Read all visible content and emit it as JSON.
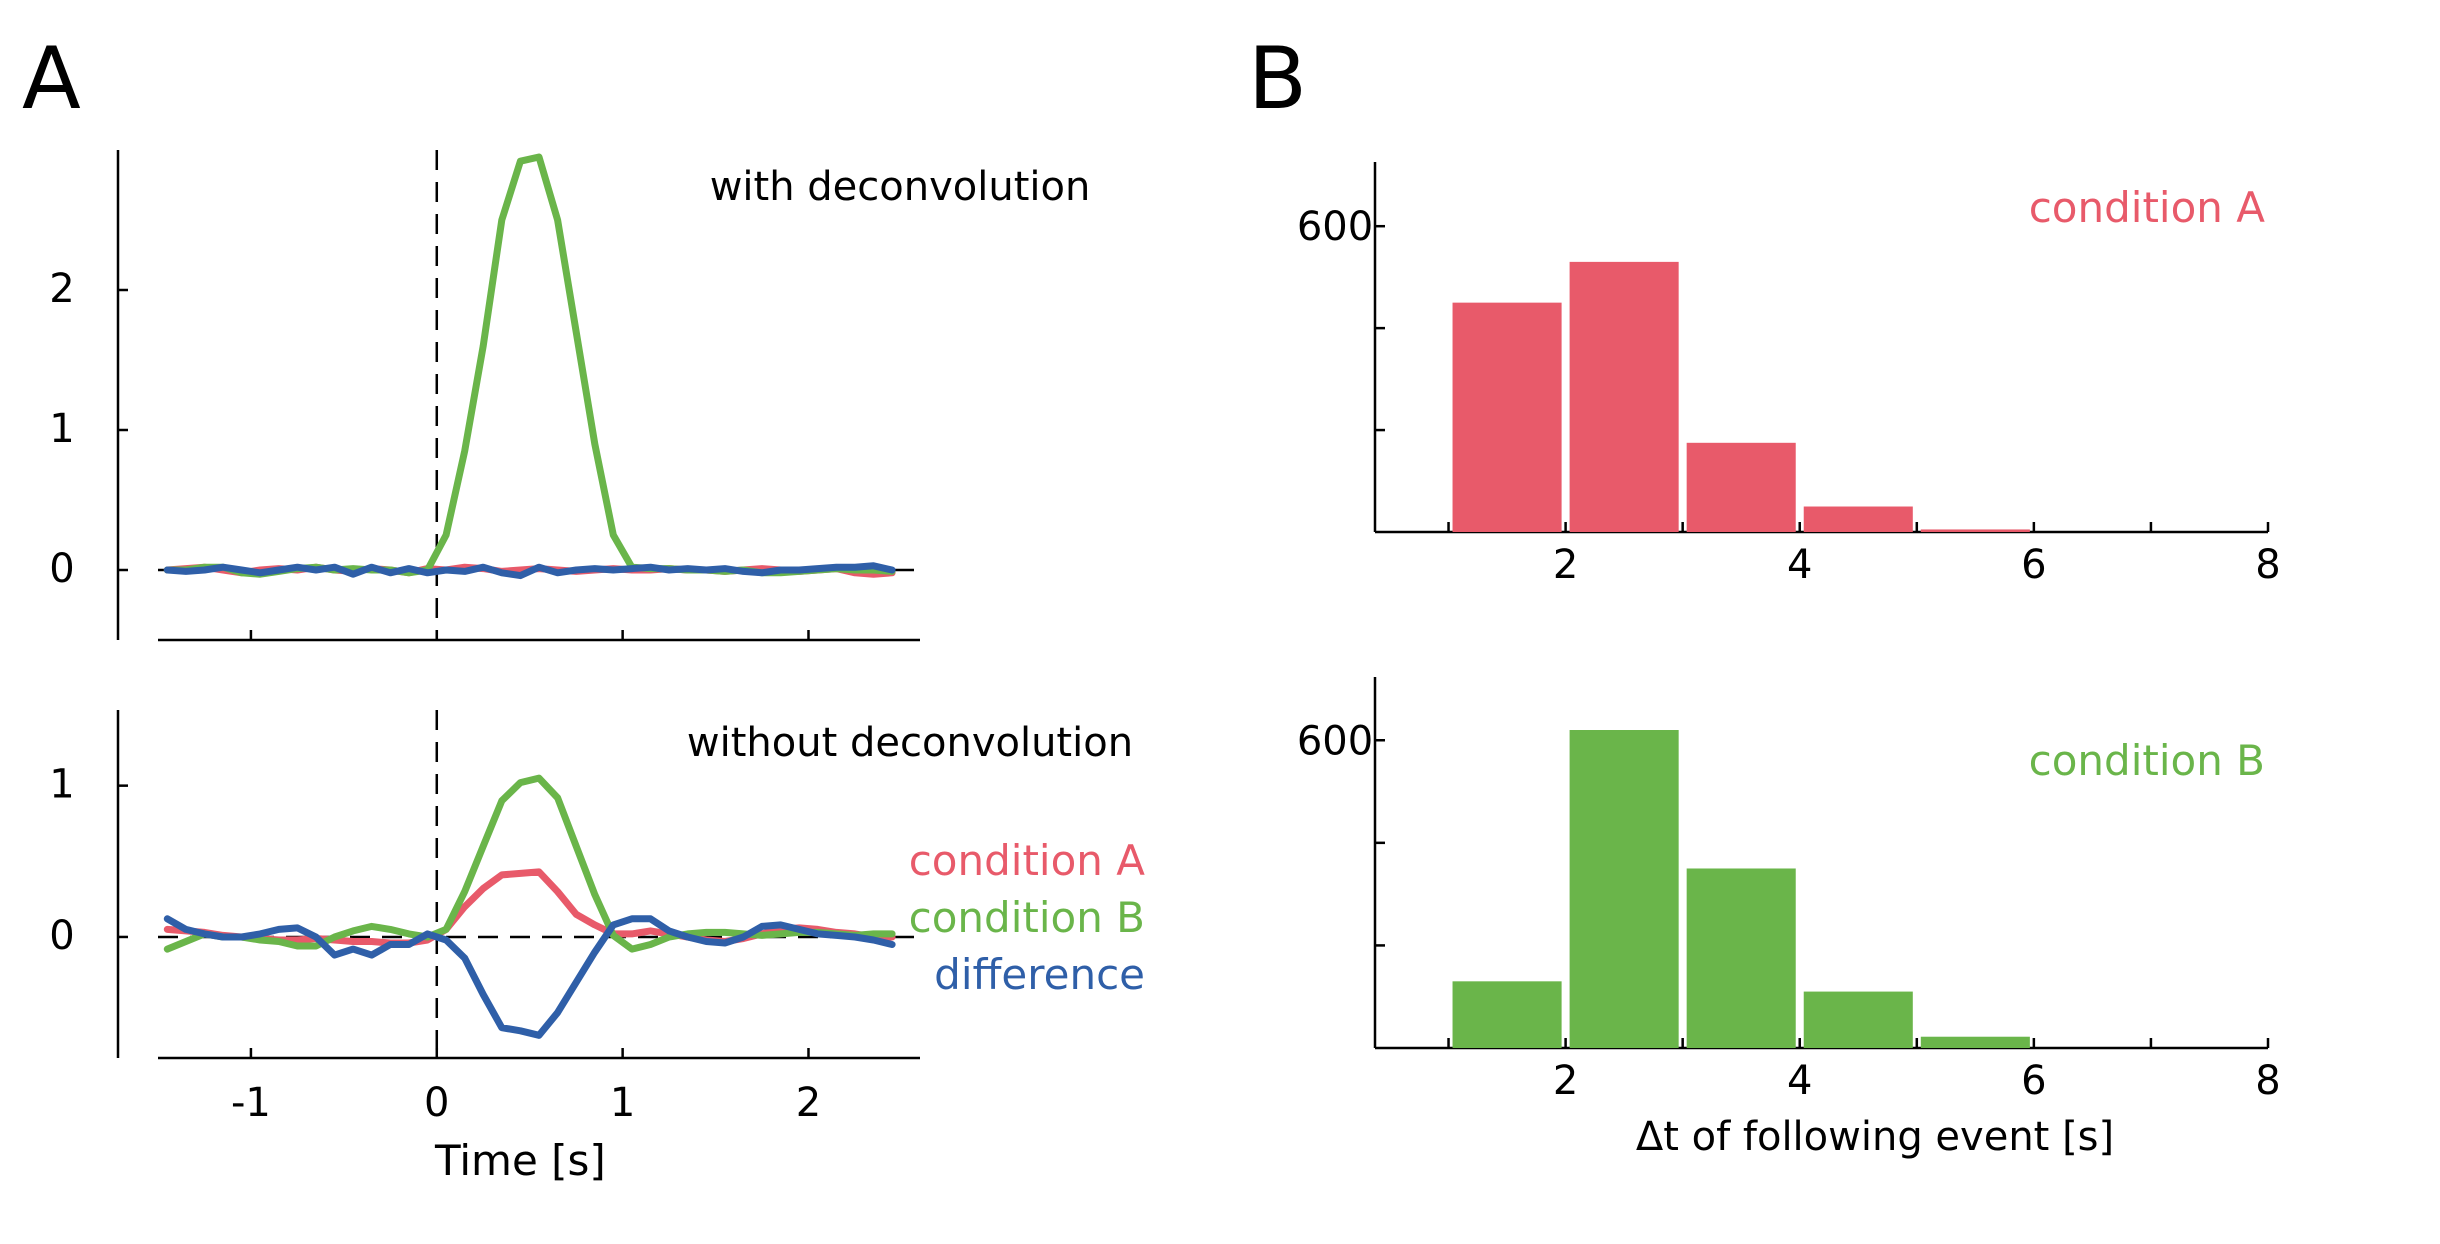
{
  "panels": {
    "a_label": "A",
    "b_label": "B"
  },
  "colors": {
    "condition_a": "#e85a6a",
    "condition_b": "#6ab54a",
    "difference": "#2f5fa8",
    "axis": "#000000"
  },
  "chart_data": [
    {
      "id": "A-top",
      "type": "line",
      "title": "with deconvolution",
      "xlabel": "",
      "ylabel": "",
      "xlim": [
        -1.5,
        2.6
      ],
      "ylim": [
        -0.5,
        3.0
      ],
      "yticks": [
        0,
        1,
        2
      ],
      "xticks": [
        -1,
        0,
        1,
        2
      ],
      "x_ticklabels_shown": false,
      "reference_lines": {
        "vertical_x": 0,
        "horizontal_y": 0,
        "style": "dashed"
      },
      "x": [
        -1.45,
        -1.35,
        -1.25,
        -1.15,
        -1.05,
        -0.95,
        -0.85,
        -0.75,
        -0.65,
        -0.55,
        -0.45,
        -0.35,
        -0.25,
        -0.15,
        -0.05,
        0.05,
        0.15,
        0.25,
        0.35,
        0.45,
        0.55,
        0.65,
        0.75,
        0.85,
        0.95,
        1.05,
        1.15,
        1.25,
        1.35,
        1.45,
        1.55,
        1.65,
        1.75,
        1.85,
        1.95,
        2.05,
        2.15,
        2.25,
        2.35,
        2.45
      ],
      "series": [
        {
          "name": "condition A",
          "color_key": "condition_a",
          "values": [
            0.0,
            0.01,
            0.02,
            0.0,
            -0.02,
            0.0,
            0.01,
            0.0,
            0.02,
            0.0,
            -0.01,
            0.01,
            0.0,
            -0.02,
            0.01,
            0.0,
            0.02,
            0.01,
            -0.01,
            0.0,
            0.01,
            0.0,
            -0.01,
            0.0,
            0.01,
            0.0,
            0.0,
            0.01,
            0.0,
            0.0,
            -0.01,
            0.0,
            0.01,
            0.0,
            -0.01,
            0.0,
            0.01,
            -0.02,
            -0.03,
            -0.02
          ]
        },
        {
          "name": "condition B",
          "color_key": "condition_b",
          "values": [
            0.0,
            0.0,
            0.02,
            0.02,
            -0.02,
            -0.03,
            -0.01,
            0.01,
            0.02,
            0.0,
            0.01,
            0.0,
            0.0,
            -0.02,
            0.0,
            0.25,
            0.85,
            1.6,
            2.5,
            2.92,
            2.95,
            2.5,
            1.7,
            0.9,
            0.25,
            0.02,
            0.01,
            0.01,
            0.0,
            0.0,
            -0.01,
            0.0,
            -0.02,
            -0.02,
            -0.01,
            0.0,
            0.01,
            0.0,
            0.0,
            -0.01
          ]
        },
        {
          "name": "difference",
          "color_key": "difference",
          "values": [
            0.0,
            -0.01,
            0.0,
            0.02,
            0.0,
            -0.02,
            0.0,
            0.02,
            0.0,
            0.02,
            -0.03,
            0.02,
            -0.02,
            0.01,
            -0.02,
            0.0,
            -0.01,
            0.02,
            -0.02,
            -0.04,
            0.02,
            -0.02,
            0.0,
            0.01,
            0.0,
            0.01,
            0.02,
            0.0,
            0.01,
            0.0,
            0.01,
            -0.01,
            -0.02,
            0.0,
            0.0,
            0.01,
            0.02,
            0.02,
            0.03,
            0.0
          ]
        }
      ]
    },
    {
      "id": "A-bottom",
      "type": "line",
      "title": "without deconvolution",
      "xlabel": "Time [s]",
      "ylabel": "",
      "xlim": [
        -1.5,
        2.6
      ],
      "ylim": [
        -0.8,
        1.5
      ],
      "yticks": [
        0,
        1
      ],
      "xticks": [
        -1,
        0,
        1,
        2
      ],
      "xticklabels": [
        "-1",
        "0",
        "1",
        "2"
      ],
      "reference_lines": {
        "vertical_x": 0,
        "horizontal_y": 0,
        "style": "dashed"
      },
      "legend": [
        "condition A",
        "condition B",
        "difference"
      ],
      "legend_position": "right",
      "x": [
        -1.45,
        -1.35,
        -1.25,
        -1.15,
        -1.05,
        -0.95,
        -0.85,
        -0.75,
        -0.65,
        -0.55,
        -0.45,
        -0.35,
        -0.25,
        -0.15,
        -0.05,
        0.05,
        0.15,
        0.25,
        0.35,
        0.45,
        0.55,
        0.65,
        0.75,
        0.85,
        0.95,
        1.05,
        1.15,
        1.25,
        1.35,
        1.45,
        1.55,
        1.65,
        1.75,
        1.85,
        1.95,
        2.05,
        2.15,
        2.25,
        2.35,
        2.45
      ],
      "series": [
        {
          "name": "condition A",
          "color_key": "condition_a",
          "values": [
            0.05,
            0.04,
            0.03,
            0.01,
            0.0,
            -0.01,
            -0.02,
            -0.02,
            -0.01,
            -0.02,
            -0.03,
            -0.03,
            -0.04,
            -0.04,
            -0.02,
            0.05,
            0.2,
            0.32,
            0.41,
            0.42,
            0.43,
            0.3,
            0.15,
            0.08,
            0.02,
            0.02,
            0.04,
            0.02,
            0.0,
            -0.02,
            -0.03,
            -0.01,
            0.02,
            0.05,
            0.06,
            0.05,
            0.03,
            0.02,
            0.0,
            0.0
          ]
        },
        {
          "name": "condition B",
          "color_key": "condition_b",
          "values": [
            -0.08,
            -0.03,
            0.02,
            0.0,
            0.0,
            -0.02,
            -0.03,
            -0.06,
            -0.06,
            0.0,
            0.04,
            0.07,
            0.05,
            0.02,
            0.0,
            0.05,
            0.3,
            0.6,
            0.9,
            1.02,
            1.05,
            0.92,
            0.6,
            0.28,
            0.01,
            -0.08,
            -0.05,
            0.0,
            0.02,
            0.03,
            0.03,
            0.02,
            0.01,
            0.02,
            0.03,
            0.03,
            0.02,
            0.01,
            0.02,
            0.02
          ]
        },
        {
          "name": "difference",
          "color_key": "difference",
          "values": [
            0.12,
            0.05,
            0.02,
            0.0,
            0.0,
            0.02,
            0.05,
            0.06,
            0.0,
            -0.12,
            -0.08,
            -0.12,
            -0.05,
            -0.05,
            0.02,
            -0.02,
            -0.14,
            -0.38,
            -0.6,
            -0.62,
            -0.65,
            -0.5,
            -0.3,
            -0.1,
            0.08,
            0.12,
            0.12,
            0.04,
            0.0,
            -0.03,
            -0.04,
            0.0,
            0.07,
            0.08,
            0.05,
            0.02,
            0.01,
            0.0,
            -0.02,
            -0.05
          ]
        }
      ]
    },
    {
      "id": "B-top",
      "type": "bar",
      "title": "condition A",
      "xlabel": "",
      "ylabel": "",
      "xlim": [
        0.5,
        8.0
      ],
      "ylim": [
        0,
        620
      ],
      "ytick_values": [
        200,
        400,
        600
      ],
      "yticklabels": [
        "",
        "",
        "600"
      ],
      "xticks": [
        1,
        2,
        3,
        4,
        5,
        6,
        7,
        8
      ],
      "xticklabels": [
        "",
        "2",
        "",
        "4",
        "",
        "6",
        "",
        "8"
      ],
      "bins": [
        [
          1,
          2
        ],
        [
          2,
          3
        ],
        [
          3,
          4
        ],
        [
          4,
          5
        ],
        [
          5,
          6
        ]
      ],
      "values": [
        450,
        530,
        175,
        50,
        5
      ],
      "color_key": "condition_a"
    },
    {
      "id": "B-bottom",
      "type": "bar",
      "title": "condition B",
      "xlabel": "Δt of following event [s]",
      "ylabel": "",
      "xlim": [
        0.5,
        8.0
      ],
      "ylim": [
        0,
        620
      ],
      "ytick_values": [
        200,
        400,
        600
      ],
      "yticklabels": [
        "",
        "",
        "600"
      ],
      "xticks": [
        1,
        2,
        3,
        4,
        5,
        6,
        7,
        8
      ],
      "xticklabels": [
        "",
        "2",
        "",
        "4",
        "",
        "6",
        "",
        "8"
      ],
      "bins": [
        [
          1,
          2
        ],
        [
          2,
          3
        ],
        [
          3,
          4
        ],
        [
          4,
          5
        ],
        [
          5,
          6
        ]
      ],
      "values": [
        130,
        620,
        350,
        110,
        22
      ],
      "color_key": "condition_b"
    }
  ]
}
